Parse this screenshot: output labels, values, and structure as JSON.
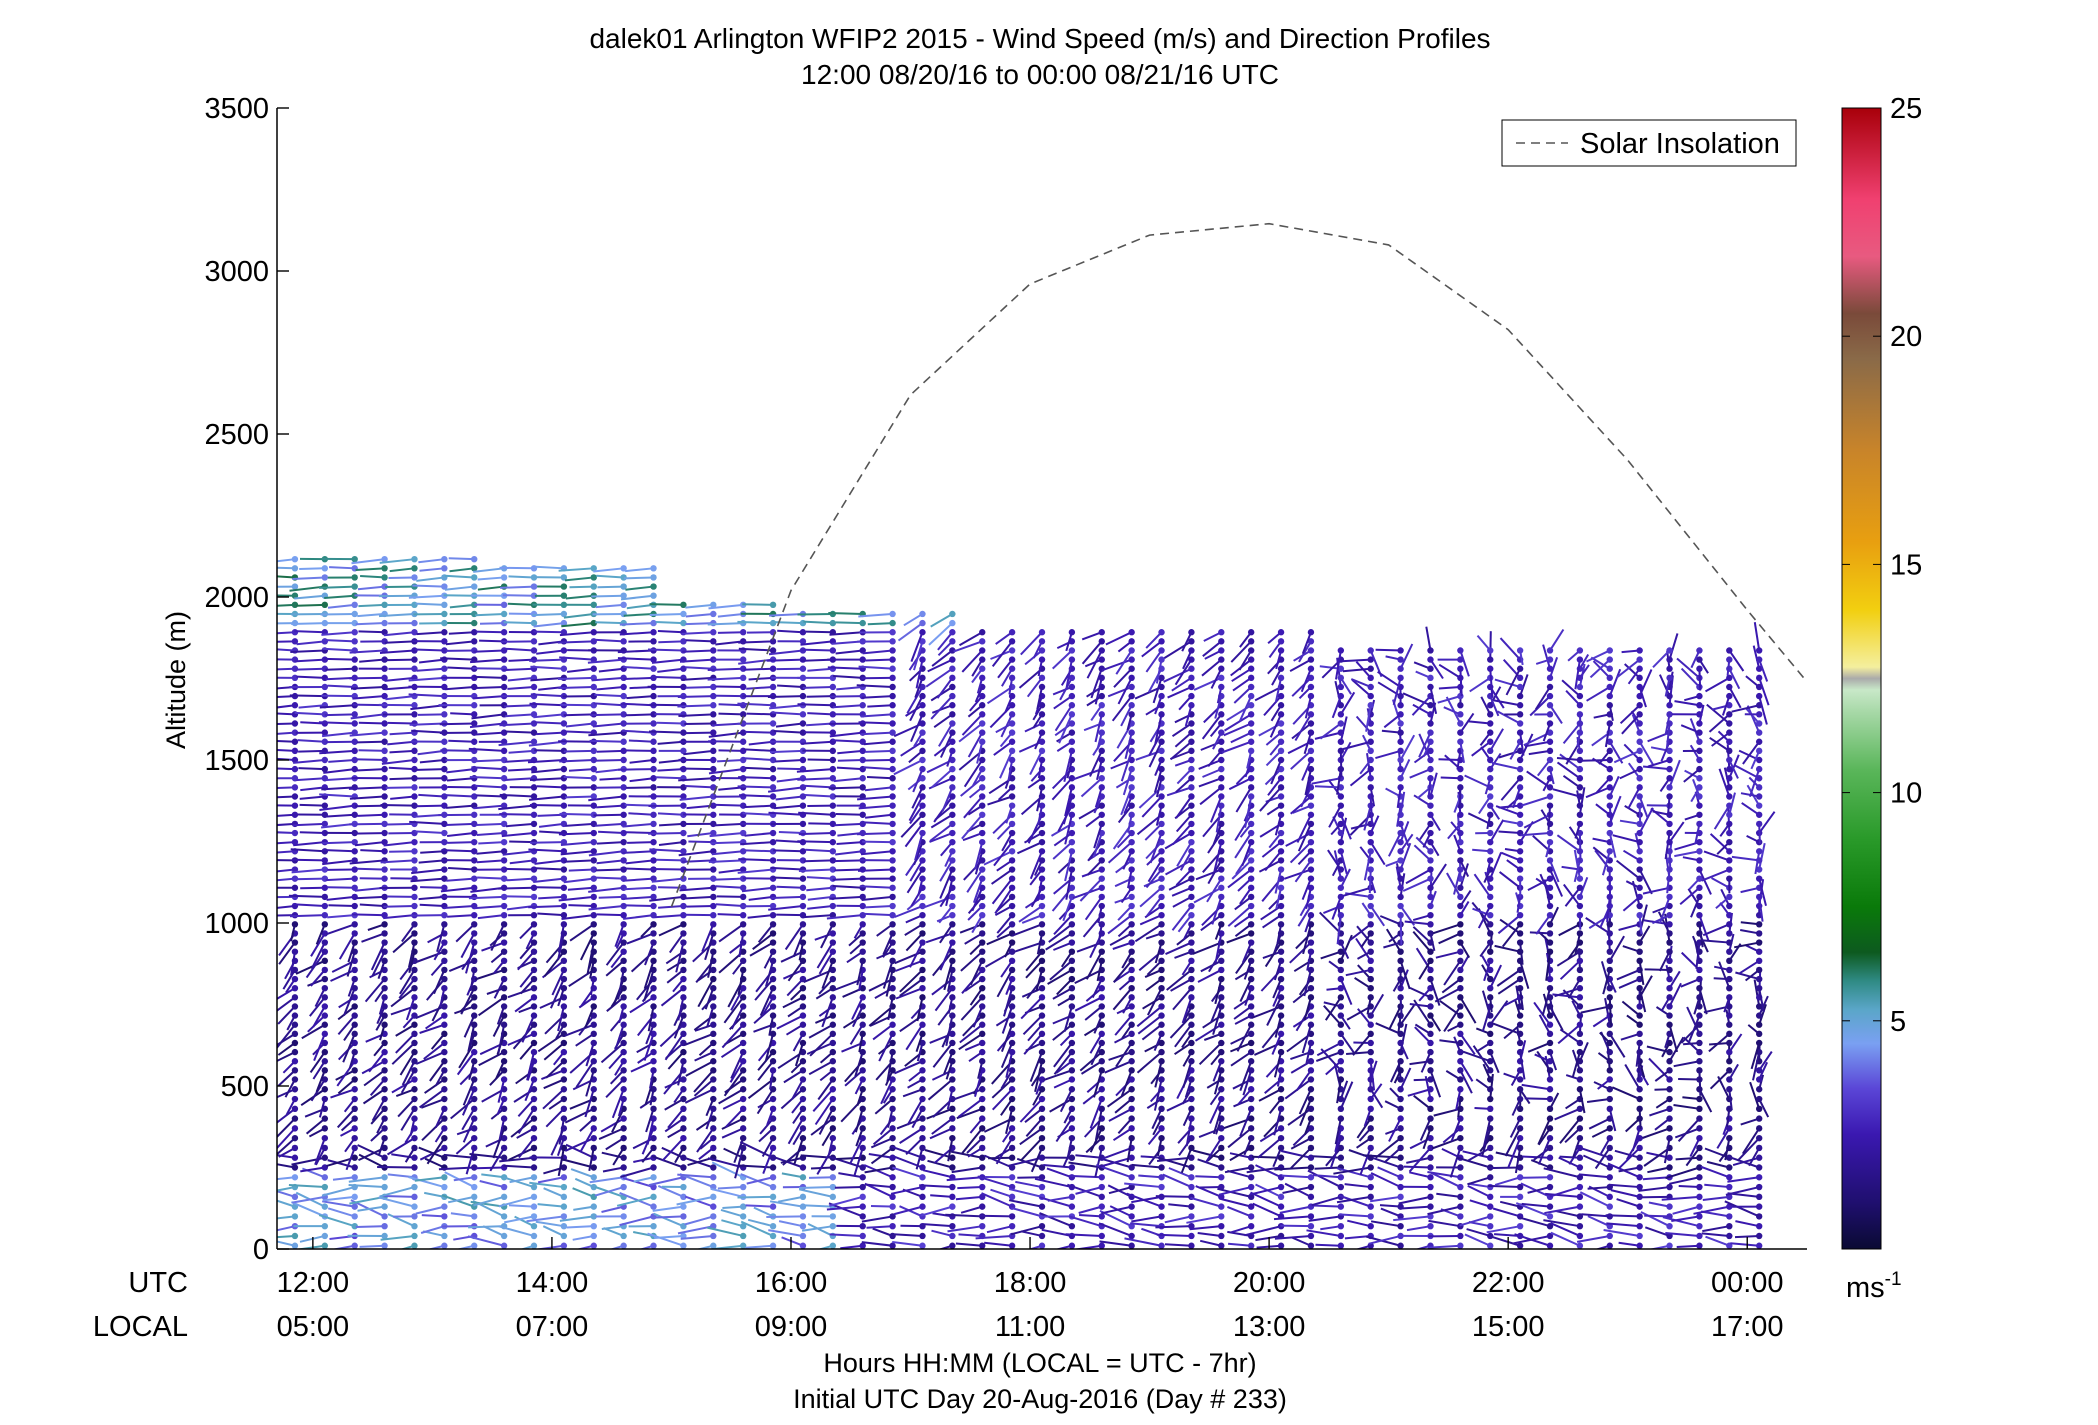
{
  "chart_data": {
    "type": "wind-barb-profile",
    "title": "dalek01 Arlington WFIP2 2015 - Wind Speed (m/s) and Direction Profiles",
    "subtitle": "12:00 08/20/16 to 00:00 08/21/16  UTC",
    "ylabel": "Altitude (m)",
    "ylim": [
      0,
      3500
    ],
    "yticks": [
      "0",
      "500",
      "1000",
      "1500",
      "2000",
      "2500",
      "3000",
      "3500"
    ],
    "xlim_hours": [
      11.7,
      24.5
    ],
    "xticks_hours": [
      12,
      14,
      16,
      18,
      20,
      22,
      24
    ],
    "xticks_utc": [
      "12:00",
      "14:00",
      "16:00",
      "18:00",
      "20:00",
      "22:00",
      "00:00"
    ],
    "xticks_local": [
      "05:00",
      "07:00",
      "09:00",
      "11:00",
      "13:00",
      "15:00",
      "17:00"
    ],
    "xrow_label_utc": "UTC",
    "xrow_label_local": "LOCAL",
    "xlabel": "Hours HH:MM  (LOCAL = UTC - 7hr)",
    "xlabel2": "Initial UTC Day 20-Aug-2016 (Day # 233)",
    "legend": {
      "label": "Solar Insolation",
      "position": "top-right",
      "line_color": "#555555"
    },
    "solar_insolation": {
      "x_hours": [
        15.0,
        16.0,
        17.0,
        18.0,
        19.0,
        20.0,
        21.0,
        22.0,
        23.0,
        24.0,
        24.5
      ],
      "y_m": [
        1050,
        2020,
        2620,
        2960,
        3110,
        3145,
        3080,
        2820,
        2420,
        1960,
        1740
      ]
    },
    "colorbar": {
      "unit": "ms",
      "unit_exp": "-1",
      "range": [
        0,
        25
      ],
      "ticks": [
        "5",
        "10",
        "15",
        "20",
        "25"
      ],
      "stops": [
        [
          0.0,
          "#0a0a33"
        ],
        [
          0.04,
          "#1f0f6e"
        ],
        [
          0.1,
          "#3a18b0"
        ],
        [
          0.14,
          "#5a45d6"
        ],
        [
          0.18,
          "#7aa0f2"
        ],
        [
          0.21,
          "#5aa6c8"
        ],
        [
          0.235,
          "#2f8a84"
        ],
        [
          0.26,
          "#0d5a1f"
        ],
        [
          0.3,
          "#0a7a0a"
        ],
        [
          0.36,
          "#2a9a2a"
        ],
        [
          0.42,
          "#5ab65a"
        ],
        [
          0.47,
          "#a6d8a6"
        ],
        [
          0.49,
          "#c8e8c8"
        ],
        [
          0.5,
          "#aaaaaa"
        ],
        [
          0.51,
          "#f4ef9e"
        ],
        [
          0.56,
          "#f2cf10"
        ],
        [
          0.62,
          "#e89f10"
        ],
        [
          0.7,
          "#c8842a"
        ],
        [
          0.78,
          "#8a6a48"
        ],
        [
          0.82,
          "#7a4a3a"
        ],
        [
          0.87,
          "#e85a80"
        ],
        [
          0.92,
          "#f04070"
        ],
        [
          1.0,
          "#a8000a"
        ]
      ]
    },
    "barbs": {
      "time_start_hours": 11.85,
      "time_step_hours": 0.25,
      "time_count": 50,
      "note": "Wind barbs plotted every 15 minutes at 20-30 m range gates; colors per colorbar speed (0-25 m/s)."
    }
  }
}
